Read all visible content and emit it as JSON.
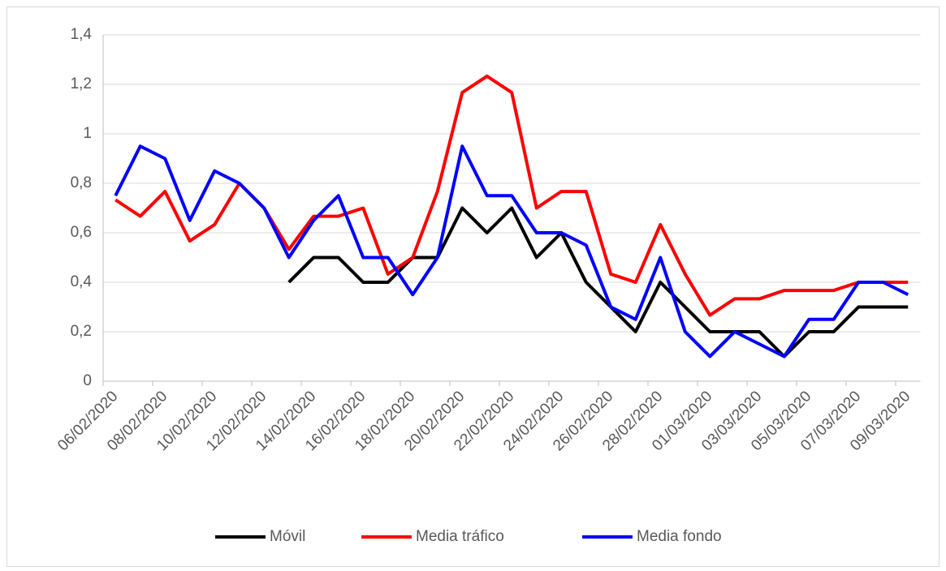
{
  "chart_data": {
    "type": "line",
    "categories": [
      "06/02/2020",
      null,
      "08/02/2020",
      null,
      "10/02/2020",
      null,
      "12/02/2020",
      null,
      "14/02/2020",
      null,
      "16/02/2020",
      null,
      "18/02/2020",
      null,
      "20/02/2020",
      null,
      "22/02/2020",
      null,
      "24/02/2020",
      null,
      "26/02/2020",
      null,
      "28/02/2020",
      null,
      "01/03/2020",
      null,
      "03/03/2020",
      null,
      "05/03/2020",
      null,
      "07/03/2020",
      null,
      "09/03/2020"
    ],
    "series": [
      {
        "name": "Móvil",
        "color": "#000000",
        "values": [
          null,
          null,
          null,
          null,
          null,
          null,
          null,
          0.4,
          0.5,
          0.5,
          0.4,
          0.4,
          0.5,
          0.5,
          0.7,
          0.6,
          0.7,
          0.5,
          0.6,
          0.4,
          0.3,
          0.2,
          0.4,
          0.3,
          0.2,
          0.2,
          0.2,
          0.1,
          0.2,
          0.2,
          0.3,
          0.3,
          0.3
        ]
      },
      {
        "name": "Media tráfico",
        "color": "#ff0000",
        "values": [
          0.733,
          0.667,
          0.767,
          0.567,
          0.633,
          0.8,
          0.7,
          0.533,
          0.667,
          0.667,
          0.7,
          0.433,
          0.5,
          0.767,
          1.167,
          1.233,
          1.167,
          0.7,
          0.767,
          0.767,
          0.433,
          0.4,
          0.633,
          0.433,
          0.267,
          0.333,
          0.333,
          0.367,
          0.367,
          0.367,
          0.4,
          0.4,
          0.4
        ]
      },
      {
        "name": "Media fondo",
        "color": "#0000ff",
        "values": [
          0.75,
          0.95,
          0.9,
          0.65,
          0.85,
          0.8,
          0.7,
          0.5,
          0.65,
          0.75,
          0.5,
          0.5,
          0.35,
          0.5,
          0.95,
          0.75,
          0.75,
          0.6,
          0.6,
          0.55,
          0.3,
          0.25,
          0.5,
          0.2,
          0.1,
          0.2,
          0.15,
          0.1,
          0.25,
          0.25,
          0.4,
          0.4,
          0.35
        ]
      }
    ],
    "ylim": [
      0,
      1.4
    ],
    "yticks": [
      0,
      {
        "value": 0.2,
        "label": "0,2"
      },
      {
        "value": 0.4,
        "label": "0,4"
      },
      {
        "value": 0.6,
        "label": "0,6"
      },
      {
        "value": 0.8,
        "label": "0,8"
      },
      1,
      {
        "value": 1.2,
        "label": "1,2"
      },
      {
        "value": 1.4,
        "label": "1,4"
      }
    ],
    "grid": true,
    "legend": "bottom"
  }
}
